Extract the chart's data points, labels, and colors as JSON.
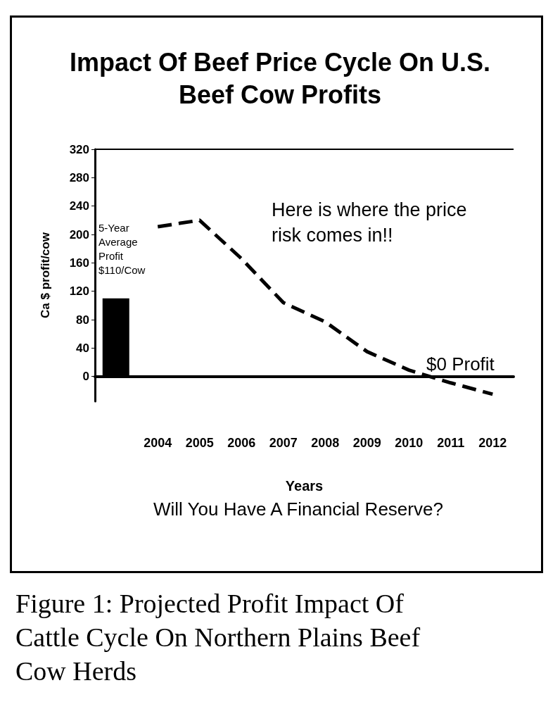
{
  "chart_data": {
    "type": "line",
    "title": "Impact Of Beef Price Cycle On U.S.\nBeef Cow Profits",
    "xlabel": "Years",
    "ylabel": "Ca $ profit/cow",
    "categories": [
      null,
      "2004",
      "2005",
      "2006",
      "2007",
      "2008",
      "2009",
      "2010",
      "2011",
      "2012"
    ],
    "series": [
      {
        "type": "bar",
        "color": "#000000",
        "values": [
          110,
          null,
          null,
          null,
          null,
          null,
          null,
          null,
          null,
          null
        ]
      },
      {
        "color": "#000000",
        "line_style": "dashed",
        "marker": "none",
        "values": [
          null,
          211,
          220,
          166,
          104,
          77,
          35,
          9,
          -9,
          -25
        ]
      }
    ],
    "ylim": [
      -35,
      320
    ],
    "yticks": [
      0,
      40,
      80,
      120,
      160,
      200,
      240,
      280,
      320
    ],
    "ref_lines": [
      {
        "axis": "y",
        "value": 320,
        "color": "#000000"
      }
    ],
    "annotations": [
      "5-Year\nAverage\nProfit\n$110/Cow",
      "Here is where the price\nrisk comes in!!",
      "$0 Profit",
      "Will You Have A Financial Reserve?",
      "Figure 1: Projected Profit Impact Of\nCattle Cycle On Northern Plains Beef\nCow Herds"
    ]
  }
}
